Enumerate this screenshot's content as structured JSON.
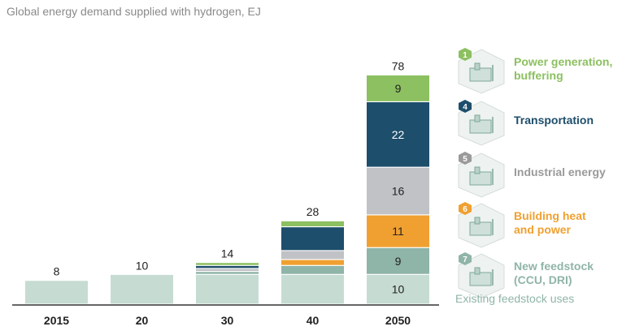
{
  "title": "Global energy demand supplied with hydrogen, EJ",
  "chart_data": {
    "type": "bar",
    "stacked": true,
    "categories": [
      "2015",
      "20",
      "30",
      "40",
      "2050"
    ],
    "totals": [
      8,
      10,
      14,
      28,
      78
    ],
    "series": [
      {
        "name": "Existing feedstock uses",
        "color": "#c6dcd3",
        "values": [
          8,
          10,
          10,
          10,
          10
        ]
      },
      {
        "name": "New feedstock (CCU, DRI)",
        "color": "#8fb4a8",
        "values": [
          0,
          0,
          1,
          3,
          9
        ]
      },
      {
        "name": "Building heat and power",
        "color": "#f0a030",
        "values": [
          0,
          0,
          0,
          2,
          11
        ]
      },
      {
        "name": "Industrial energy",
        "color": "#c0c2c5",
        "values": [
          0,
          0,
          1,
          3,
          16
        ]
      },
      {
        "name": "Transportation",
        "color": "#1d4e6b",
        "values": [
          0,
          0,
          1,
          8,
          22
        ]
      },
      {
        "name": "Power generation, buffering",
        "color": "#8cc060",
        "values": [
          0,
          0,
          1,
          2,
          9
        ]
      }
    ],
    "segment_labels_category": "2050",
    "ylim": [
      0,
      80
    ]
  },
  "legend": [
    {
      "number": "1",
      "label": "Power generation,\nbuffering",
      "color": "#8cc060"
    },
    {
      "number": "4",
      "label": "Transportation",
      "color": "#1d4e6b"
    },
    {
      "number": "5",
      "label": "Industrial energy",
      "color": "#9a9a9a"
    },
    {
      "number": "6",
      "label": "Building heat\nand power",
      "color": "#f0a030"
    },
    {
      "number": "7",
      "label": "New feedstock\n(CCU, DRI)",
      "color": "#8fb4a8"
    }
  ],
  "existing_label": "Existing feedstock uses"
}
